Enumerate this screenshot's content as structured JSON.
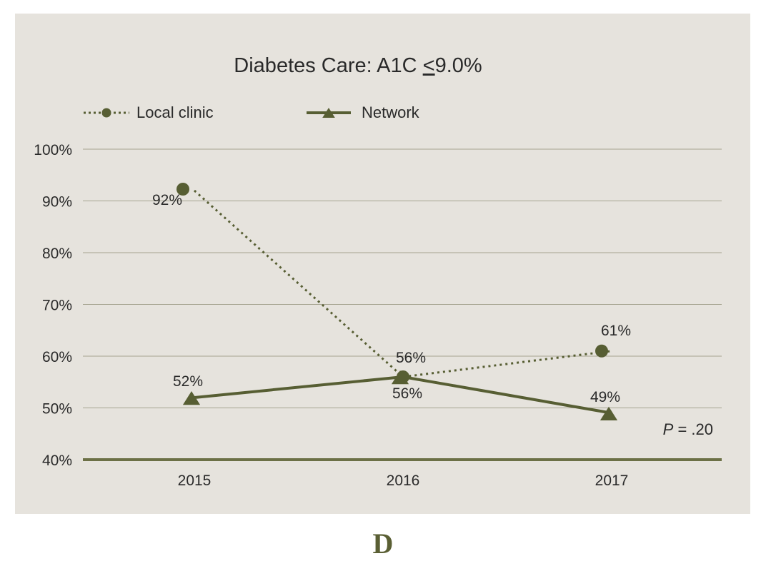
{
  "chart_data": {
    "type": "line",
    "title": "Diabetes Care: A1C ≤9.0%",
    "title_parts": {
      "prefix": "Diabetes Care: A1C ",
      "underlined_symbol": "<",
      "suffix": "9.0%"
    },
    "xlabel": "",
    "ylabel": "",
    "categories": [
      "2015",
      "2016",
      "2017"
    ],
    "ylim": [
      40,
      100
    ],
    "yticks": [
      40,
      50,
      60,
      70,
      80,
      90,
      100
    ],
    "ytick_labels": [
      "40%",
      "50%",
      "60%",
      "70%",
      "80%",
      "90%",
      "100%"
    ],
    "grid": true,
    "legend_position": "top-left",
    "series": [
      {
        "name": "Local clinic",
        "style": "dotted",
        "marker": "circle",
        "values": [
          92,
          56,
          61
        ],
        "labels": [
          "92%",
          "56%",
          "61%"
        ]
      },
      {
        "name": "Network",
        "style": "solid",
        "marker": "triangle",
        "values": [
          52,
          56,
          49
        ],
        "labels": [
          "52%",
          "56%",
          "49%"
        ]
      }
    ],
    "annotation": {
      "italic_part": "P",
      "rest": " = .20"
    },
    "colors": {
      "series": "#575e33",
      "grid": "#a5a390",
      "axis": "#6c7046",
      "background": "#e6e3dd",
      "text": "#2a2a2a"
    }
  },
  "figure_letter": "D"
}
